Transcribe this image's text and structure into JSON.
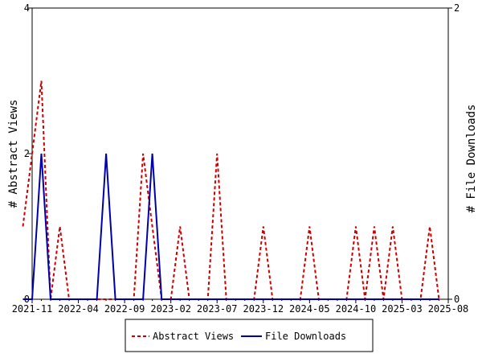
{
  "chart_data": {
    "type": "line",
    "title": "",
    "ylabel_left": "# Abstract Views",
    "ylabel_right": "# File Downloads",
    "left_axis": {
      "min": 0,
      "max": 4,
      "ticks": [
        "0",
        "2",
        "4"
      ]
    },
    "right_axis": {
      "min": 0,
      "max": 2,
      "ticks": [
        "0",
        "2"
      ]
    },
    "x_ticks": [
      "2021-11",
      "2022-04",
      "2022-09",
      "2023-02",
      "2023-07",
      "2023-12",
      "2024-05",
      "2024-10",
      "2025-03",
      "2025-08"
    ],
    "grid": false,
    "legend_position": "bottom",
    "series": [
      {
        "name": "Abstract Views",
        "axis": "left",
        "color": "#cc0000",
        "style": "dashed",
        "x": [
          "2021-10",
          "2021-11",
          "2021-12",
          "2022-01",
          "2022-02",
          "2022-03",
          "2022-04",
          "2022-05",
          "2022-06",
          "2022-07",
          "2022-08",
          "2022-09",
          "2022-10",
          "2022-11",
          "2022-12",
          "2023-01",
          "2023-02",
          "2023-03",
          "2023-04",
          "2023-05",
          "2023-06",
          "2023-07",
          "2023-08",
          "2023-09",
          "2023-10",
          "2023-11",
          "2023-12",
          "2024-01",
          "2024-02",
          "2024-03",
          "2024-04",
          "2024-05",
          "2024-06",
          "2024-07",
          "2024-08",
          "2024-09",
          "2024-10",
          "2024-11",
          "2024-12",
          "2025-01",
          "2025-02",
          "2025-03",
          "2025-04",
          "2025-05",
          "2025-06",
          "2025-07"
        ],
        "values": [
          1,
          2,
          3,
          0,
          1,
          0,
          0,
          0,
          0,
          0,
          0,
          0,
          0,
          2,
          1,
          0,
          0,
          1,
          0,
          0,
          0,
          2,
          0,
          0,
          0,
          0,
          1,
          0,
          0,
          0,
          0,
          1,
          0,
          0,
          0,
          0,
          1,
          0,
          1,
          0,
          1,
          0,
          0,
          0,
          1,
          0
        ]
      },
      {
        "name": "File Downloads",
        "axis": "right",
        "color": "#0000aa",
        "style": "solid",
        "x": [
          "2021-10",
          "2021-11",
          "2021-12",
          "2022-01",
          "2022-02",
          "2022-03",
          "2022-04",
          "2022-05",
          "2022-06",
          "2022-07",
          "2022-08",
          "2022-09",
          "2022-10",
          "2022-11",
          "2022-12",
          "2023-01",
          "2023-02",
          "2023-03",
          "2023-04",
          "2023-05",
          "2023-06",
          "2023-07",
          "2023-08",
          "2023-09",
          "2023-10",
          "2023-11",
          "2023-12",
          "2024-01",
          "2024-02",
          "2024-03",
          "2024-04",
          "2024-05",
          "2024-06",
          "2024-07",
          "2024-08",
          "2024-09",
          "2024-10",
          "2024-11",
          "2024-12",
          "2025-01",
          "2025-02",
          "2025-03",
          "2025-04",
          "2025-05",
          "2025-06",
          "2025-07"
        ],
        "values": [
          0,
          0,
          1,
          0,
          0,
          0,
          0,
          0,
          0,
          1,
          0,
          0,
          0,
          0,
          1,
          0,
          0,
          0,
          0,
          0,
          0,
          0,
          0,
          0,
          0,
          0,
          0,
          0,
          0,
          0,
          0,
          0,
          0,
          0,
          0,
          0,
          0,
          0,
          0,
          0,
          0,
          0,
          0,
          0,
          0,
          0
        ]
      }
    ]
  }
}
